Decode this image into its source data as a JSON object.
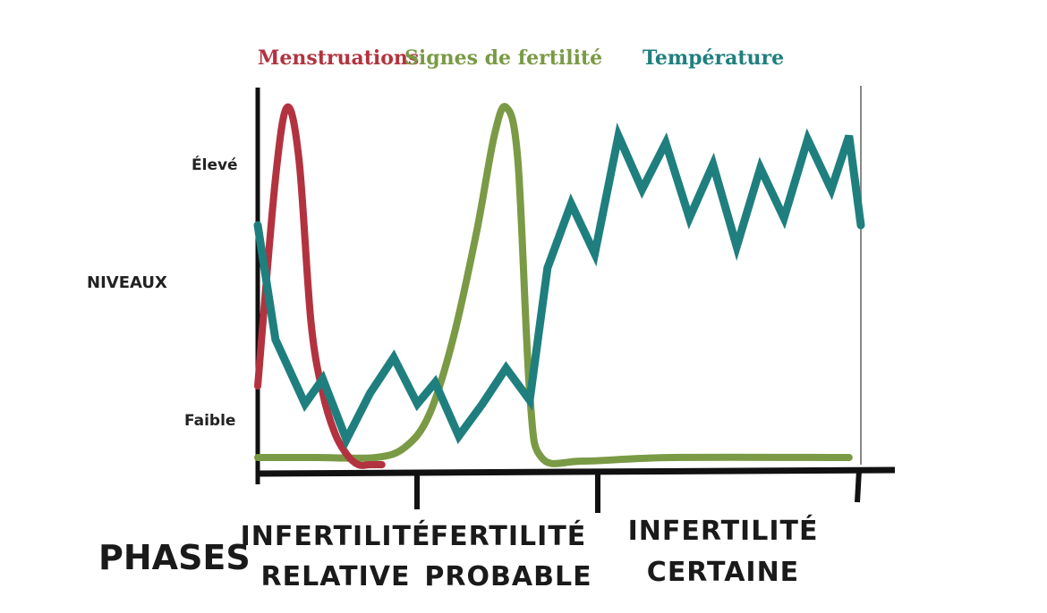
{
  "chart_data": {
    "type": "line",
    "ylabel": "NIVEAUX",
    "yticks": [
      "Élevé",
      "Faible"
    ],
    "xlabel": "PHASES",
    "phases": [
      {
        "line1": "INFERTILITÉ",
        "line2": "RELATIVE"
      },
      {
        "line1": "FERTILITÉ",
        "line2": "PROBABLE"
      },
      {
        "line1": "INFERTILITÉ",
        "line2": "CERTAINE"
      }
    ],
    "series": [
      {
        "name": "Menstruations",
        "color": "#b2333f",
        "points": [
          [
            0,
            0.22
          ],
          [
            3,
            0.8
          ],
          [
            5,
            1.0
          ],
          [
            7,
            0.85
          ],
          [
            9,
            0.4
          ],
          [
            11,
            0.2
          ],
          [
            13,
            0.09
          ],
          [
            15,
            0.03
          ],
          [
            17,
            0.0
          ],
          [
            19,
            0.0
          ],
          [
            21,
            0.0
          ]
        ]
      },
      {
        "name": "Signes de fertilité",
        "color": "#7a9a45",
        "points": [
          [
            0,
            0.02
          ],
          [
            10,
            0.02
          ],
          [
            20,
            0.02
          ],
          [
            25,
            0.05
          ],
          [
            29,
            0.14
          ],
          [
            33,
            0.35
          ],
          [
            37,
            0.65
          ],
          [
            40,
            0.92
          ],
          [
            42,
            1.0
          ],
          [
            44,
            0.85
          ],
          [
            46,
            0.2
          ],
          [
            48,
            0.02
          ],
          [
            55,
            0.01
          ],
          [
            70,
            0.02
          ],
          [
            100,
            0.02
          ]
        ]
      },
      {
        "name": "Température",
        "color": "#1f7f7e",
        "points": [
          [
            0,
            0.67
          ],
          [
            3,
            0.35
          ],
          [
            8,
            0.17
          ],
          [
            11,
            0.24
          ],
          [
            15,
            0.07
          ],
          [
            19,
            0.2
          ],
          [
            23,
            0.3
          ],
          [
            27,
            0.17
          ],
          [
            30,
            0.23
          ],
          [
            34,
            0.08
          ],
          [
            38,
            0.17
          ],
          [
            42,
            0.27
          ],
          [
            46,
            0.18
          ],
          [
            49,
            0.55
          ],
          [
            53,
            0.73
          ],
          [
            57,
            0.59
          ],
          [
            61,
            0.92
          ],
          [
            65,
            0.77
          ],
          [
            69,
            0.9
          ],
          [
            73,
            0.69
          ],
          [
            77,
            0.84
          ],
          [
            81,
            0.61
          ],
          [
            85,
            0.83
          ],
          [
            89,
            0.69
          ],
          [
            93,
            0.91
          ],
          [
            97,
            0.77
          ],
          [
            100,
            0.92
          ],
          [
            102,
            0.67
          ]
        ]
      }
    ],
    "xlim": [
      0,
      102
    ],
    "ylim": [
      0,
      1
    ]
  }
}
